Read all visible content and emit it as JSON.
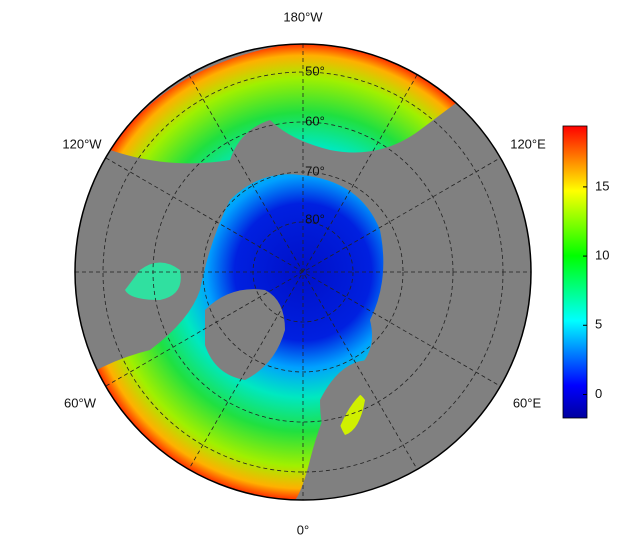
{
  "map": {
    "lon_labels": {
      "top": "180°W",
      "bottom": "0°",
      "upper_left": "120°W",
      "upper_right": "120°E",
      "lower_left": "60°W",
      "lower_right": "60°E"
    },
    "lat_labels": [
      "50°",
      "60°",
      "70°",
      "80°"
    ]
  },
  "colorbar": {
    "lim": [
      -1.7,
      19.4
    ],
    "ticks": [
      0,
      5,
      10,
      15
    ],
    "colormap": [
      "#00009f",
      "#0000ff",
      "#0080ff",
      "#00ffff",
      "#00ff80",
      "#00ff00",
      "#80ff00",
      "#ffff00",
      "#ff8000",
      "#ff0000"
    ]
  }
}
